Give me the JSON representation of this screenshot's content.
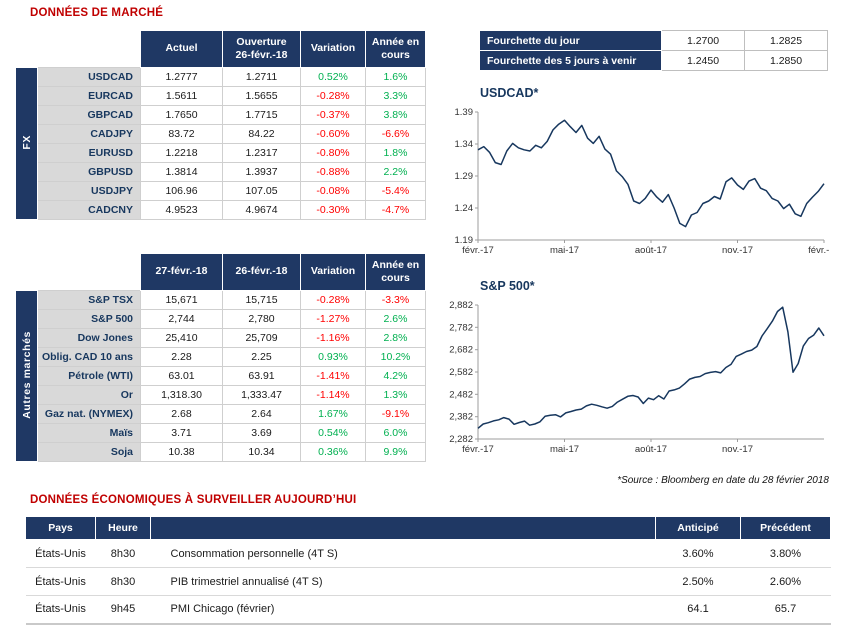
{
  "meta": {
    "market_title": "DONNÉES DE MARCHÉ",
    "econ_title": "DONNÉES ÉCONOMIQUES À SURVEILLER AUJOURD’HUI",
    "source_note": "*Source : Bloomberg en date du  28 février 2018"
  },
  "colors": {
    "navy": "#1F3864",
    "title_red": "#C00000",
    "positive": "#00B050",
    "negative": "#FF0000",
    "label_bg": "#D9D9D9"
  },
  "range_table": {
    "rows": [
      {
        "label": "Fourchette du jour",
        "low": "1.2700",
        "high": "1.2825"
      },
      {
        "label": "Fourchette des 5 jours à venir",
        "low": "1.2450",
        "high": "1.2850"
      }
    ]
  },
  "fx_table": {
    "group_label": "FX",
    "headers": [
      "Actuel",
      "Ouverture\n26-févr.-18",
      "Variation",
      "Année en\ncours"
    ],
    "rows": [
      {
        "label": "USDCAD",
        "actual": "1.2777",
        "open": "1.2711",
        "variation": "0.52%",
        "ytd": "1.6%"
      },
      {
        "label": "EURCAD",
        "actual": "1.5611",
        "open": "1.5655",
        "variation": "-0.28%",
        "ytd": "3.3%"
      },
      {
        "label": "GBPCAD",
        "actual": "1.7650",
        "open": "1.7715",
        "variation": "-0.37%",
        "ytd": "3.8%"
      },
      {
        "label": "CADJPY",
        "actual": "83.72",
        "open": "84.22",
        "variation": "-0.60%",
        "ytd": "-6.6%"
      },
      {
        "label": "EURUSD",
        "actual": "1.2218",
        "open": "1.2317",
        "variation": "-0.80%",
        "ytd": "1.8%"
      },
      {
        "label": "GBPUSD",
        "actual": "1.3814",
        "open": "1.3937",
        "variation": "-0.88%",
        "ytd": "2.2%"
      },
      {
        "label": "USDJPY",
        "actual": "106.96",
        "open": "107.05",
        "variation": "-0.08%",
        "ytd": "-5.4%"
      },
      {
        "label": "CADCNY",
        "actual": "4.9523",
        "open": "4.9674",
        "variation": "-0.30%",
        "ytd": "-4.7%"
      }
    ]
  },
  "markets_table": {
    "group_label": "Autres marchés",
    "headers": [
      "27-févr.-18",
      "26-févr.-18",
      "Variation",
      "Année en\ncours"
    ],
    "rows": [
      {
        "label": "S&P TSX",
        "actual": "15,671",
        "open": "15,715",
        "variation": "-0.28%",
        "ytd": "-3.3%"
      },
      {
        "label": "S&P 500",
        "actual": "2,744",
        "open": "2,780",
        "variation": "-1.27%",
        "ytd": "2.6%"
      },
      {
        "label": "Dow Jones",
        "actual": "25,410",
        "open": "25,709",
        "variation": "-1.16%",
        "ytd": "2.8%"
      },
      {
        "label": "Oblig. CAD 10 ans",
        "actual": "2.28",
        "open": "2.25",
        "variation": "0.93%",
        "ytd": "10.2%"
      },
      {
        "label": "Pétrole (WTI)",
        "actual": "63.01",
        "open": "63.91",
        "variation": "-1.41%",
        "ytd": "4.2%"
      },
      {
        "label": "Or",
        "actual": "1,318.30",
        "open": "1,333.47",
        "variation": "-1.14%",
        "ytd": "1.3%"
      },
      {
        "label": "Gaz nat. (NYMEX)",
        "actual": "2.68",
        "open": "2.64",
        "variation": "1.67%",
        "ytd": "-9.1%"
      },
      {
        "label": "Maïs",
        "actual": "3.71",
        "open": "3.69",
        "variation": "0.54%",
        "ytd": "6.0%"
      },
      {
        "label": "Soja",
        "actual": "10.38",
        "open": "10.34",
        "variation": "0.36%",
        "ytd": "9.9%"
      }
    ]
  },
  "econ_table": {
    "headers": [
      "Pays",
      "Heure",
      "",
      "Anticipé",
      "Précédent"
    ],
    "rows": [
      {
        "country": "États-Unis",
        "time": "8h30",
        "event": "Consommation personnelle (4T S)",
        "expected": "3.60%",
        "previous": "3.80%"
      },
      {
        "country": "États-Unis",
        "time": "8h30",
        "event": "PIB trimestriel annualisé (4T S)",
        "expected": "2.50%",
        "previous": "2.60%"
      },
      {
        "country": "États-Unis",
        "time": "9h45",
        "event": "PMI Chicago (février)",
        "expected": "64.1",
        "previous": "65.7"
      }
    ]
  },
  "chart_data": [
    {
      "type": "line",
      "title": "USDCAD*",
      "x_tick_labels": [
        "févr.-17",
        "mai-17",
        "août-17",
        "nov.-17",
        "févr.-18"
      ],
      "y_tick_values": [
        1.19,
        1.24,
        1.29,
        1.34,
        1.39
      ],
      "y_tick_labels": [
        "1.19",
        "1.24",
        "1.29",
        "1.34",
        "1.39"
      ],
      "ylim": [
        1.19,
        1.39
      ],
      "grid": false,
      "legend": false,
      "series": [
        {
          "name": "USDCAD",
          "values": [
            1.331,
            1.336,
            1.327,
            1.311,
            1.308,
            1.329,
            1.341,
            1.334,
            1.331,
            1.329,
            1.338,
            1.334,
            1.344,
            1.362,
            1.371,
            1.377,
            1.367,
            1.358,
            1.369,
            1.349,
            1.341,
            1.352,
            1.332,
            1.324,
            1.298,
            1.289,
            1.277,
            1.251,
            1.247,
            1.255,
            1.268,
            1.257,
            1.249,
            1.261,
            1.24,
            1.216,
            1.211,
            1.229,
            1.233,
            1.247,
            1.251,
            1.258,
            1.254,
            1.281,
            1.287,
            1.276,
            1.269,
            1.282,
            1.286,
            1.271,
            1.267,
            1.255,
            1.251,
            1.239,
            1.246,
            1.231,
            1.227,
            1.247,
            1.257,
            1.266,
            1.278
          ]
        }
      ]
    },
    {
      "type": "line",
      "title": "S&P 500*",
      "x_tick_labels": [
        "févr.-17",
        "mai-17",
        "août-17",
        "nov.-17"
      ],
      "y_tick_values": [
        2282,
        2382,
        2482,
        2582,
        2682,
        2782,
        2882
      ],
      "y_tick_labels": [
        "2,282",
        "2,382",
        "2,482",
        "2,582",
        "2,682",
        "2,782",
        "2,882"
      ],
      "ylim": [
        2282,
        2882
      ],
      "grid": false,
      "legend": false,
      "series": [
        {
          "name": "S&P 500",
          "values": [
            2330,
            2349,
            2355,
            2363,
            2368,
            2378,
            2371,
            2348,
            2356,
            2362,
            2344,
            2349,
            2359,
            2384,
            2388,
            2391,
            2381,
            2399,
            2405,
            2412,
            2416,
            2430,
            2438,
            2433,
            2426,
            2420,
            2428,
            2447,
            2460,
            2473,
            2477,
            2470,
            2441,
            2465,
            2458,
            2476,
            2461,
            2497,
            2502,
            2510,
            2529,
            2550,
            2558,
            2562,
            2575,
            2580,
            2584,
            2578,
            2602,
            2616,
            2652,
            2662,
            2674,
            2680,
            2696,
            2743,
            2776,
            2810,
            2853,
            2872,
            2762,
            2581,
            2620,
            2698,
            2732,
            2747,
            2779,
            2744
          ]
        }
      ]
    }
  ]
}
